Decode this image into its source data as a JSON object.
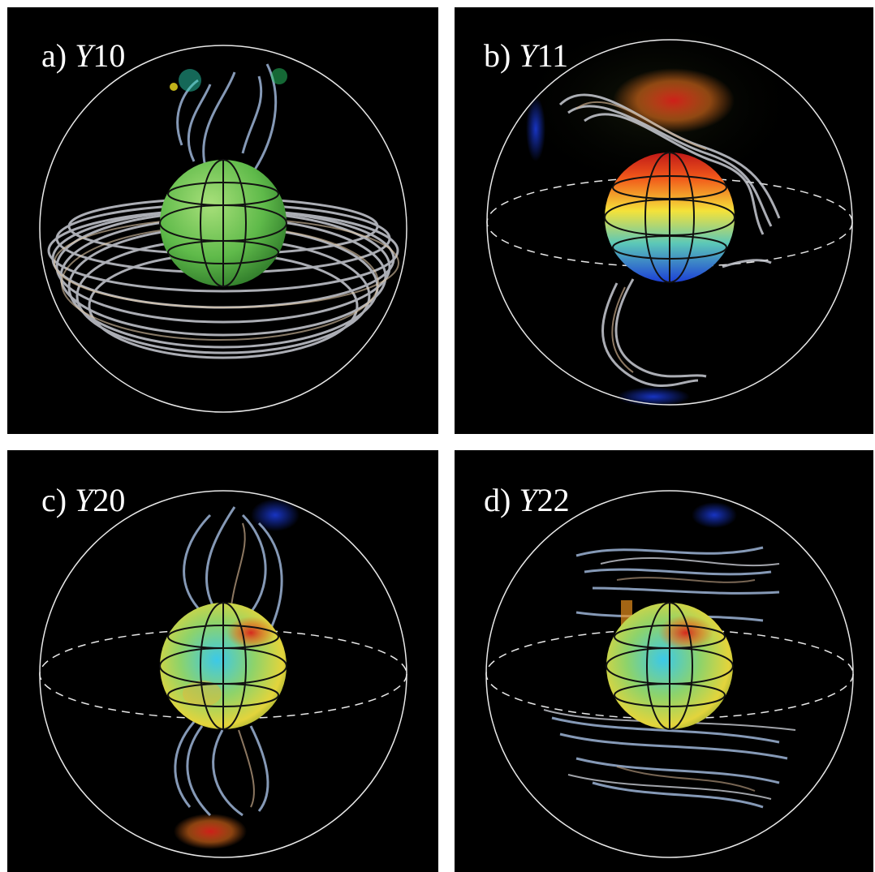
{
  "panels": [
    {
      "id": "a",
      "letter": "a)",
      "sym": "Y",
      "num": "10"
    },
    {
      "id": "b",
      "letter": "b)",
      "sym": "Y",
      "num": "11"
    },
    {
      "id": "c",
      "letter": "c)",
      "sym": "Y",
      "num": "20"
    },
    {
      "id": "d",
      "letter": "d)",
      "sym": "Y",
      "num": "22"
    }
  ],
  "colors": {
    "background": "#000000",
    "outer_sphere": "#e8e8e8",
    "field_lines": "#c9ccd4",
    "field_lines_blue": "#9db4d6",
    "field_lines_tan": "#c7a98a"
  }
}
